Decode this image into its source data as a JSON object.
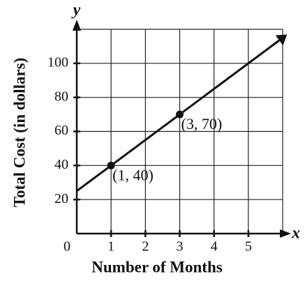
{
  "chart_data": {
    "type": "line",
    "x_label": "Number of Months",
    "y_label": "Total Cost (in dollars)",
    "x_axis_name": "x",
    "y_axis_name": "y",
    "xlim": [
      0,
      6
    ],
    "ylim": [
      0,
      120
    ],
    "xticks": [
      0,
      1,
      2,
      3,
      4,
      5
    ],
    "yticks": [
      20,
      40,
      60,
      80,
      100
    ],
    "xgrid": [
      1,
      2,
      3,
      4,
      5,
      6
    ],
    "ygrid": [
      20,
      40,
      60,
      80,
      100,
      120
    ],
    "grid": true,
    "series": [
      {
        "x": [
          0,
          5.9
        ],
        "values": [
          25,
          113.5
        ],
        "color": "#111111"
      }
    ],
    "points": {
      "x": [
        1,
        3
      ],
      "values": [
        40,
        70
      ],
      "value_labels": [
        "(1, 40)",
        "(3, 70)"
      ],
      "color": "#111111"
    }
  }
}
